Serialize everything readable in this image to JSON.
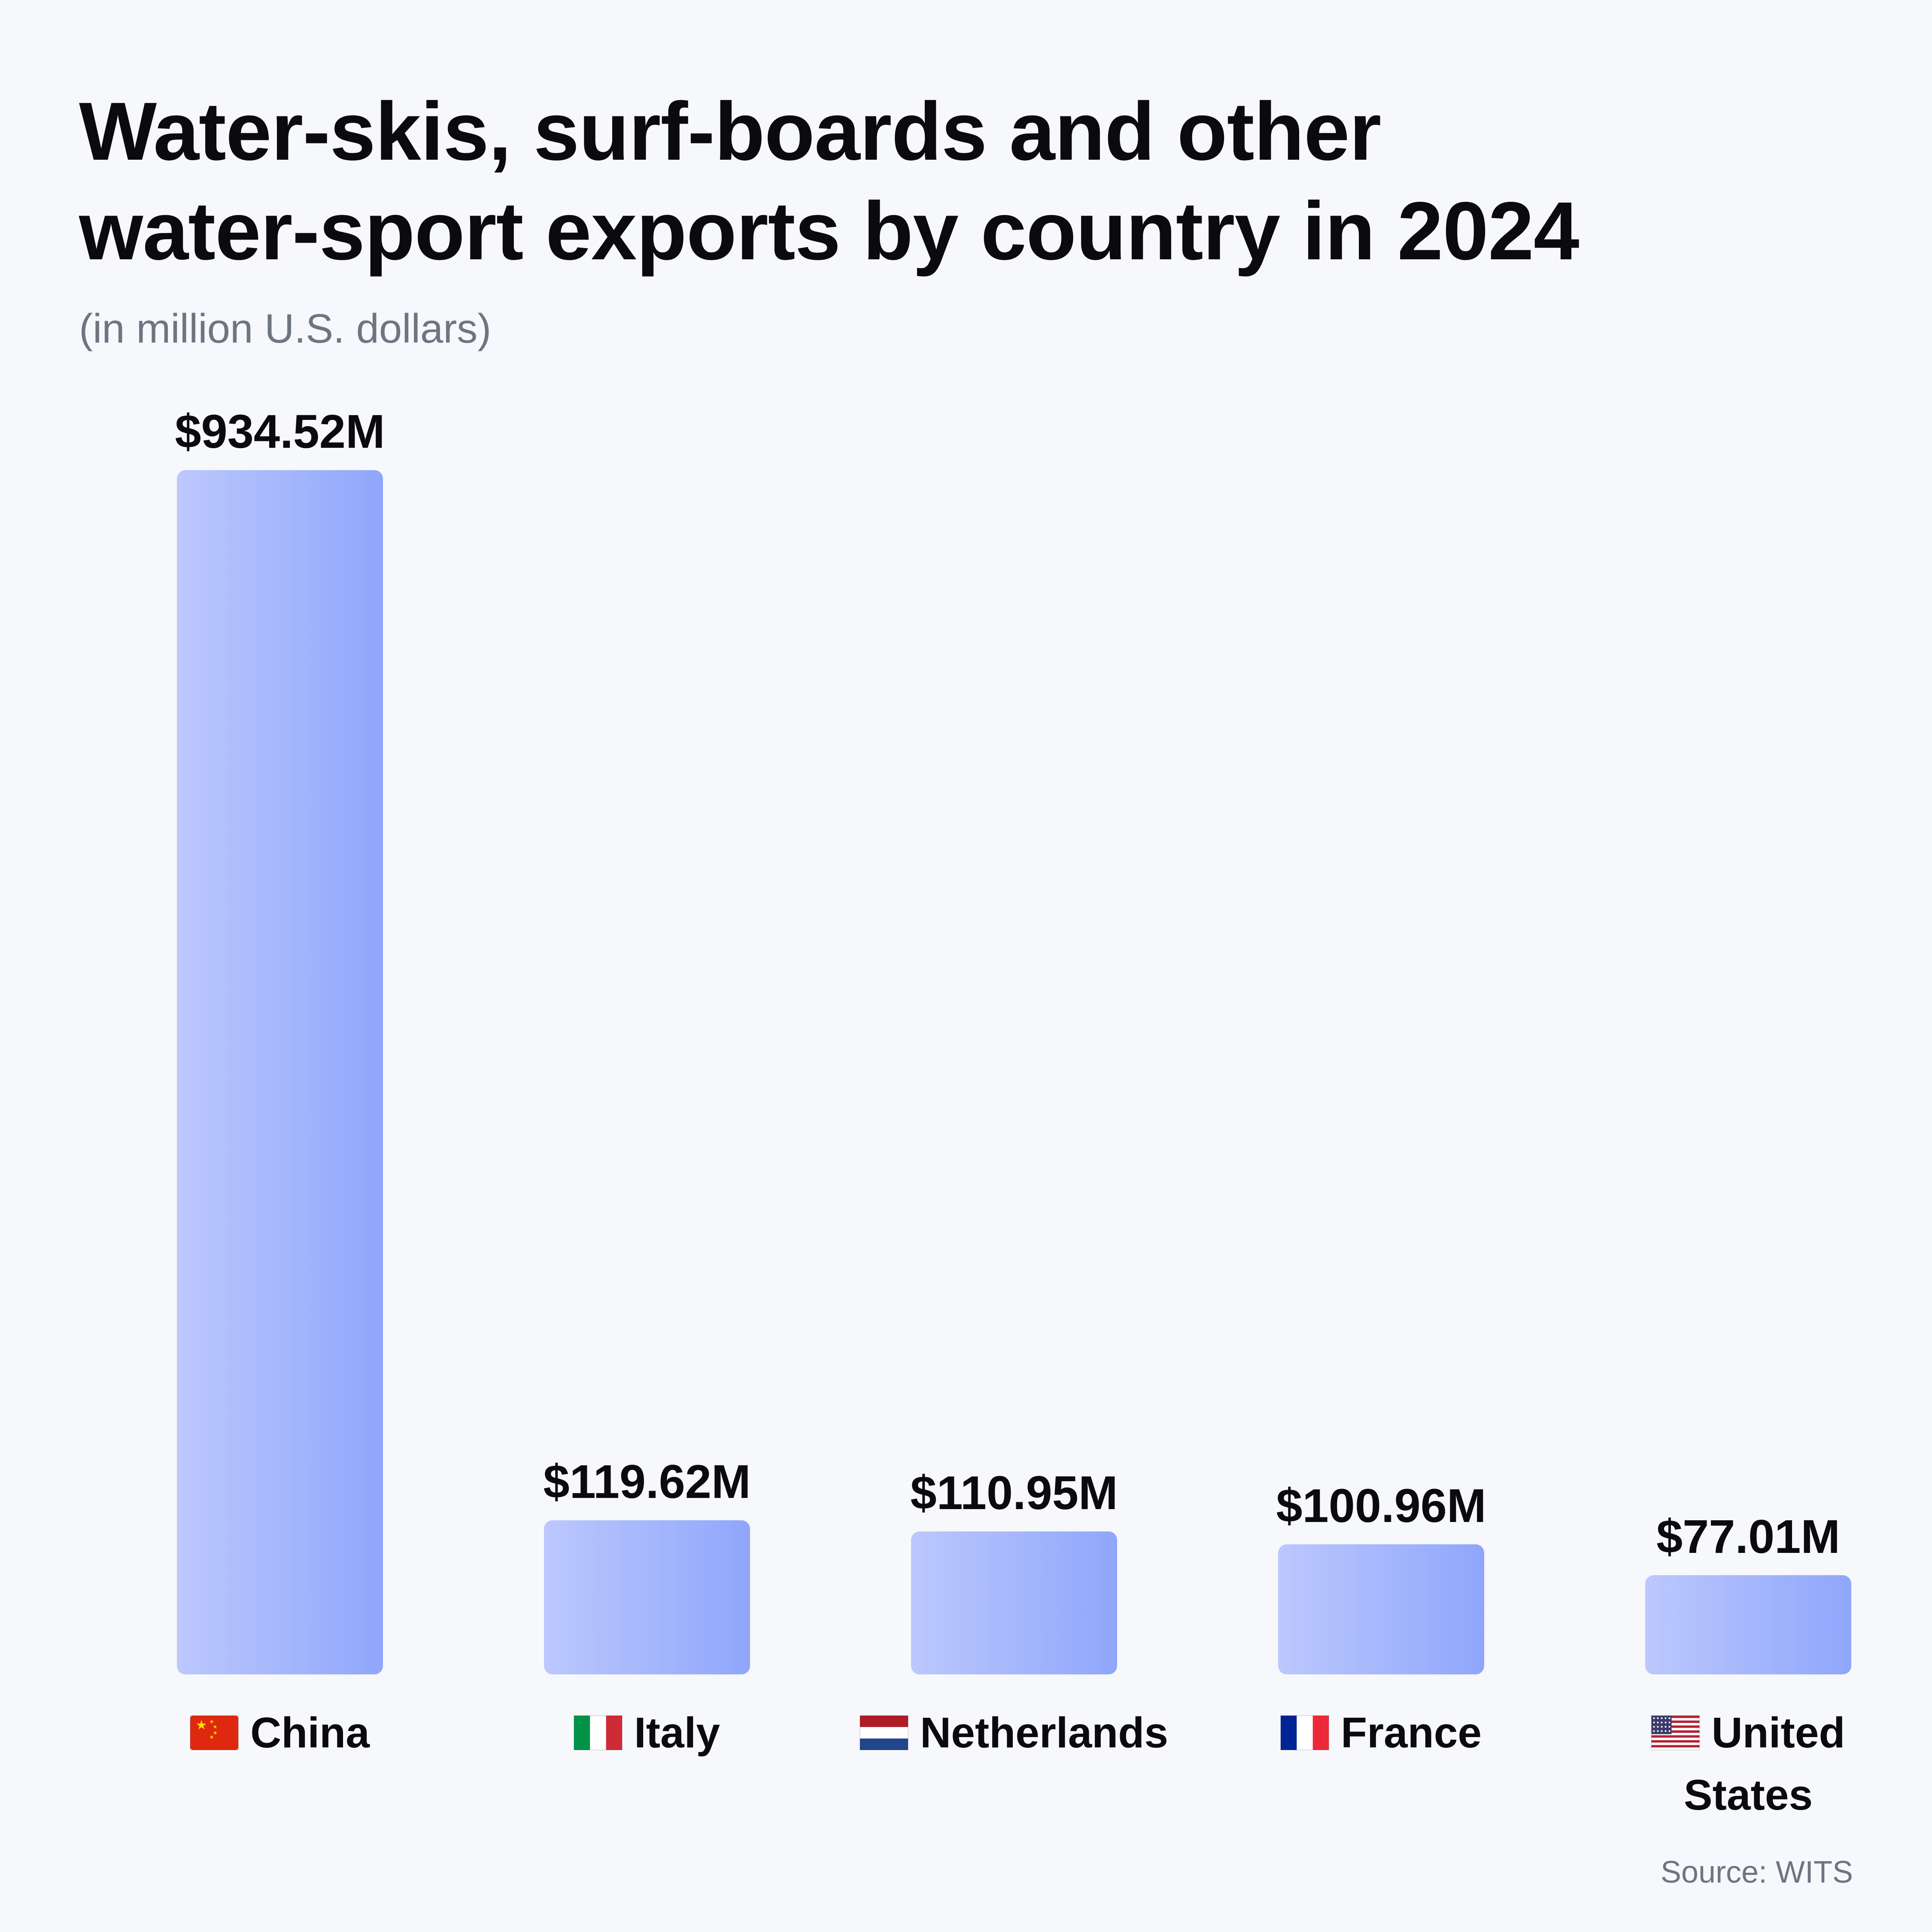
{
  "header": {
    "title_line1": "Water-skis, surf-boards and other",
    "title_line2": "water-sport exports by country in 2024",
    "subtitle": "(in million U.S. dollars)"
  },
  "footer": {
    "source": "Source: WITS"
  },
  "colors": {
    "bar_gradient_start": "#bcc8fd",
    "bar_gradient_end": "#8fa6fb",
    "text": "#0b0b0f",
    "muted_text": "#6f7580",
    "background": "#f7f8fc"
  },
  "chart_data": {
    "type": "bar",
    "title": "Water-skis, surf-boards and other water-sport exports by country in 2024",
    "subtitle": "(in million U.S. dollars)",
    "categories": [
      "China",
      "Italy",
      "Netherlands",
      "France",
      "United States"
    ],
    "category_lines": [
      [
        "China"
      ],
      [
        "Italy"
      ],
      [
        "Netherlands"
      ],
      [
        "France"
      ],
      [
        "United",
        "States"
      ]
    ],
    "flags": [
      "flag-china-icon",
      "flag-italy-icon",
      "flag-netherlands-icon",
      "flag-france-icon",
      "flag-united-states-icon"
    ],
    "values": [
      934.52,
      119.62,
      110.95,
      100.96,
      77.01
    ],
    "value_labels": [
      "$934.52M",
      "$119.62M",
      "$110.95M",
      "$100.96M",
      "$77.01M"
    ],
    "unit": "million U.S. dollars",
    "ylim": [
      0,
      934.52
    ],
    "grid": false,
    "legend": "none"
  }
}
